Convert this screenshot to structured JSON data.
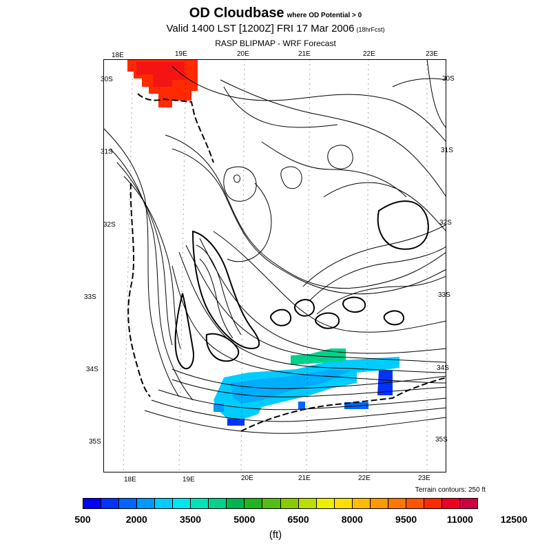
{
  "title": {
    "main": "OD Cloudbase",
    "qualifier": "where OD Potential > 0",
    "valid": "Valid 1400 LST [1200Z] FRI 17 Mar 2006",
    "forecast": "(18hrFcst)",
    "model": "RASP BLIPMAP - WRF Forecast"
  },
  "map": {
    "lon_labels": [
      "18E",
      "19E",
      "20E",
      "21E",
      "22E",
      "23E"
    ],
    "lat_labels": [
      "30S",
      "31S",
      "32S",
      "33S",
      "34S",
      "35S"
    ],
    "terrain_note": "Terrain contours: 250 ft"
  },
  "colorbar": {
    "colors": [
      "#0000ff",
      "#0033ff",
      "#0066ff",
      "#0099ff",
      "#00ccff",
      "#00e5ee",
      "#00e5b8",
      "#00d28c",
      "#00b450",
      "#22b41e",
      "#55be14",
      "#88cc00",
      "#bbdd00",
      "#eeee00",
      "#ffdd00",
      "#ffbb00",
      "#ff9900",
      "#ff7700",
      "#ff5500",
      "#ff2a00",
      "#ee0022",
      "#d00040"
    ],
    "tick_labels": [
      "500",
      "2000",
      "3500",
      "5000",
      "6500",
      "8000",
      "9500",
      "11000",
      "12500"
    ],
    "unit": "(ft)"
  }
}
